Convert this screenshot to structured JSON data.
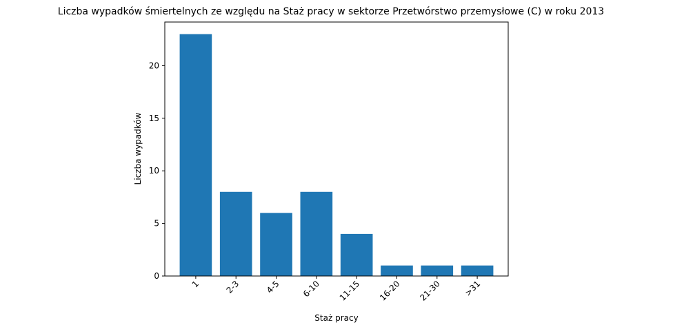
{
  "chart_data": {
    "type": "bar",
    "title": "Liczba wypadków śmiertelnych ze względu na Staż pracy w sektorze Przetwórstwo przemysłowe (C)   w roku 2013",
    "xlabel": "Staż pracy",
    "ylabel": "Liczba wypadków",
    "categories": [
      "1",
      "2-3",
      "4-5",
      "6-10",
      "11-15",
      "16-20",
      "21-30",
      ">31"
    ],
    "values": [
      23,
      8,
      6,
      8,
      4,
      1,
      1,
      1
    ],
    "ylim": [
      0,
      24.15
    ],
    "yticks": [
      0,
      5,
      10,
      15,
      20
    ],
    "grid": false,
    "bar_color": "#1f77b4",
    "xtick_rotation": 45
  }
}
